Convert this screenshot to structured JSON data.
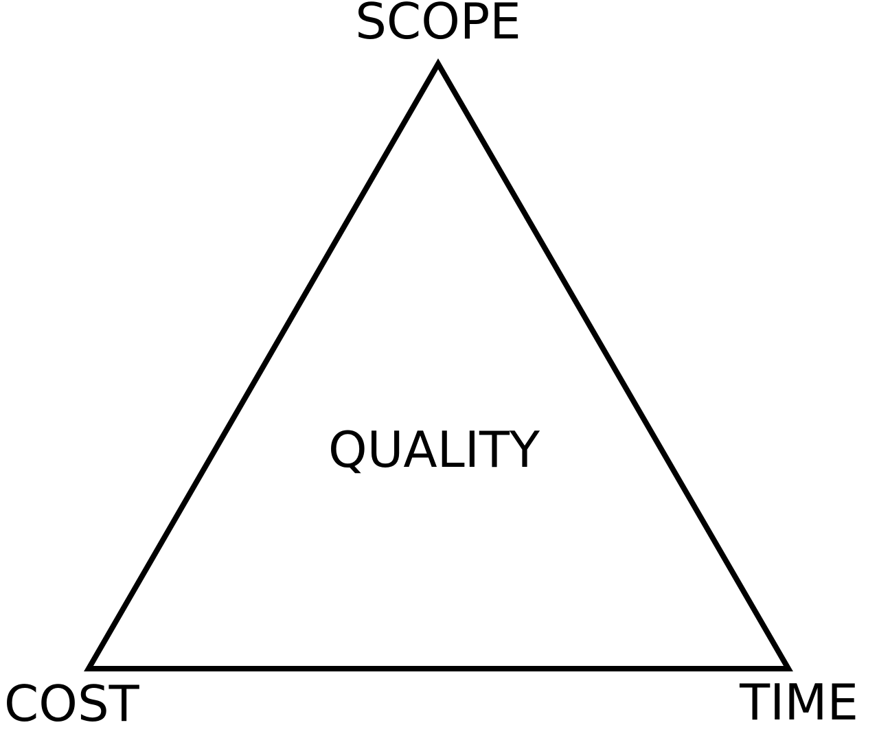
{
  "diagram": {
    "vertices": {
      "top": "SCOPE",
      "bottom_left": "COST",
      "bottom_right": "TIME"
    },
    "center": "QUALITY",
    "stroke_color": "#000000",
    "text_color": "#000000",
    "background_color": "#ffffff"
  }
}
